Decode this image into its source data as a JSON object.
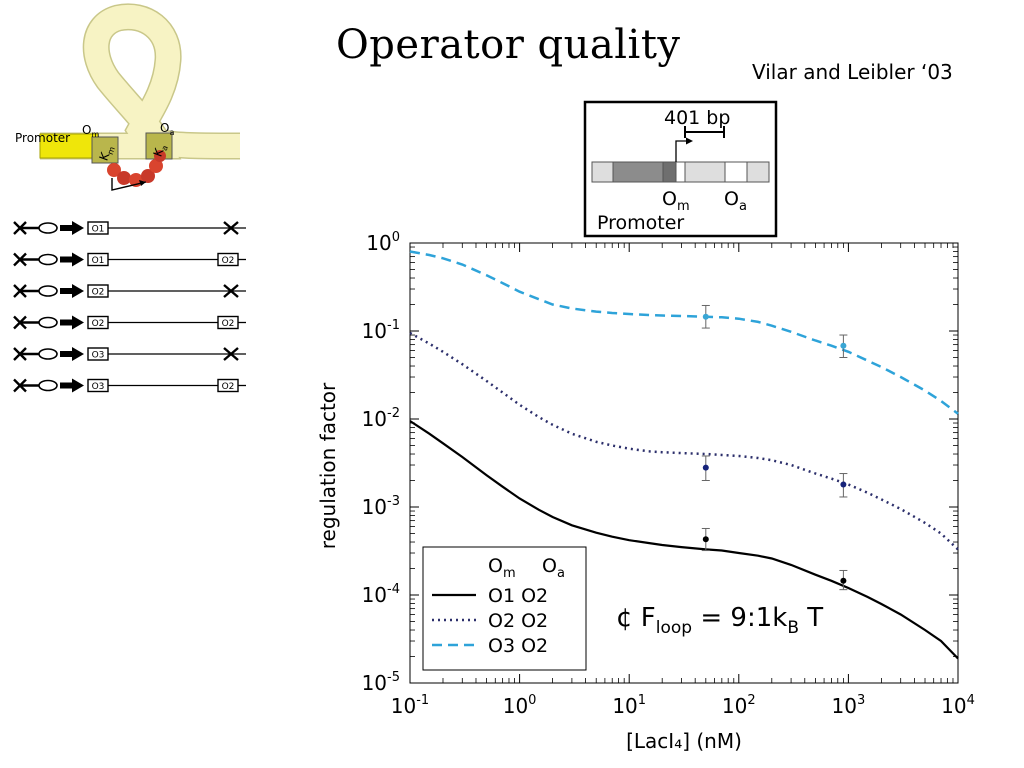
{
  "slide": {
    "title": "Operator quality",
    "citation": "Vilar and Leibler ‘03"
  },
  "loop_figure": {
    "promoter_label": "Promoter",
    "om_main": "O",
    "om_sub": "m",
    "oa_main": "O",
    "oa_sub": "a",
    "km_main": "K",
    "km_sub": "m",
    "ka_main": "K",
    "ka_sub": "a"
  },
  "constructs": [
    {
      "first": "O1",
      "second": ""
    },
    {
      "first": "O1",
      "second": "O2"
    },
    {
      "first": "O2",
      "second": ""
    },
    {
      "first": "O2",
      "second": "O2"
    },
    {
      "first": "O3",
      "second": ""
    },
    {
      "first": "O3",
      "second": "O2"
    }
  ],
  "inset": {
    "distance_label": "401 bp",
    "om_main": "O",
    "om_sub": "m",
    "oa_main": "O",
    "oa_sub": "a",
    "promoter_label": "Promoter"
  },
  "colors": {
    "o1o2": "#000000",
    "o2o2": "#2c2f6b",
    "o3o2": "#2ea3d9",
    "point_o2o2": "#16237a",
    "point_o3o2": "#3aa6d4"
  },
  "chart_data": {
    "type": "line",
    "xlabel": "[LacI₄] (nM)",
    "ylabel": "regulation factor",
    "x_scale": "log",
    "y_scale": "log",
    "xlim": [
      0.1,
      10000
    ],
    "ylim": [
      1e-05,
      1
    ],
    "x_ticks": [
      {
        "value": 0.1,
        "base": "10",
        "exp": "-1"
      },
      {
        "value": 1,
        "base": "10",
        "exp": "0"
      },
      {
        "value": 10,
        "base": "10",
        "exp": "1"
      },
      {
        "value": 100,
        "base": "10",
        "exp": "2"
      },
      {
        "value": 1000,
        "base": "10",
        "exp": "3"
      },
      {
        "value": 10000,
        "base": "10",
        "exp": "4"
      }
    ],
    "y_ticks": [
      {
        "value": 1,
        "base": "10",
        "exp": "0"
      },
      {
        "value": 0.1,
        "base": "10",
        "exp": "-1"
      },
      {
        "value": 0.01,
        "base": "10",
        "exp": "-2"
      },
      {
        "value": 0.001,
        "base": "10",
        "exp": "-3"
      },
      {
        "value": 0.0001,
        "base": "10",
        "exp": "-4"
      },
      {
        "value": 1e-05,
        "base": "10",
        "exp": "-5"
      }
    ],
    "legend_header": {
      "om_main": "O",
      "om_sub": "m",
      "oa_main": "O",
      "oa_sub": "a"
    },
    "legend_position": "bottom-left",
    "annotation": {
      "prefix": "¢ F",
      "sub": "loop",
      "mid": " =  9:1k",
      "sub2": "B",
      "suffix": " T"
    },
    "series": [
      {
        "name": "O1 O2",
        "style": "solid",
        "color_key": "o1o2",
        "x": [
          0.1,
          0.15,
          0.2,
          0.3,
          0.5,
          0.7,
          1,
          1.5,
          2,
          3,
          5,
          7,
          10,
          15,
          20,
          30,
          50,
          70,
          100,
          150,
          200,
          300,
          500,
          700,
          1000,
          1500,
          2000,
          3000,
          5000,
          7000,
          10000
        ],
        "y": [
          0.0095,
          0.0068,
          0.0053,
          0.0037,
          0.0023,
          0.0017,
          0.00125,
          0.00093,
          0.00077,
          0.00062,
          0.00051,
          0.00046,
          0.00042,
          0.00039,
          0.00037,
          0.00035,
          0.00033,
          0.00032,
          0.0003,
          0.00028,
          0.00026,
          0.00022,
          0.00017,
          0.000145,
          0.00012,
          9.5e-05,
          7.9e-05,
          6e-05,
          4e-05,
          3e-05,
          1.9e-05
        ]
      },
      {
        "name": "O2 O2",
        "style": "dotted",
        "color_key": "o2o2",
        "x": [
          0.1,
          0.15,
          0.2,
          0.3,
          0.5,
          0.7,
          1,
          1.5,
          2,
          3,
          5,
          7,
          10,
          15,
          20,
          30,
          50,
          70,
          100,
          150,
          200,
          300,
          500,
          700,
          1000,
          1500,
          2000,
          3000,
          5000,
          7000,
          10000
        ],
        "y": [
          0.095,
          0.072,
          0.058,
          0.042,
          0.027,
          0.02,
          0.0145,
          0.0105,
          0.0086,
          0.0068,
          0.0055,
          0.005,
          0.0046,
          0.0043,
          0.0042,
          0.0041,
          0.004,
          0.0039,
          0.0038,
          0.0036,
          0.0034,
          0.003,
          0.0024,
          0.0021,
          0.0018,
          0.00145,
          0.00122,
          0.00095,
          0.00066,
          0.0005,
          0.00033
        ]
      },
      {
        "name": "O3 O2",
        "style": "dashed",
        "color_key": "o3o2",
        "x": [
          0.1,
          0.15,
          0.2,
          0.3,
          0.5,
          0.7,
          1,
          1.5,
          2,
          3,
          5,
          7,
          10,
          15,
          20,
          30,
          50,
          70,
          100,
          150,
          200,
          300,
          500,
          700,
          1000,
          1500,
          2000,
          3000,
          5000,
          7000,
          10000
        ],
        "y": [
          0.8,
          0.73,
          0.67,
          0.57,
          0.43,
          0.35,
          0.28,
          0.23,
          0.2,
          0.18,
          0.166,
          0.16,
          0.156,
          0.152,
          0.15,
          0.148,
          0.145,
          0.143,
          0.138,
          0.127,
          0.115,
          0.098,
          0.078,
          0.068,
          0.058,
          0.046,
          0.039,
          0.03,
          0.021,
          0.016,
          0.0115
        ]
      }
    ],
    "measurements": [
      {
        "series": "O1 O2",
        "color_key": "o1o2",
        "x": 50,
        "y": 0.00043,
        "ylow": 0.00032,
        "yhigh": 0.00057
      },
      {
        "series": "O1 O2",
        "color_key": "o1o2",
        "x": 900,
        "y": 0.000145,
        "ylow": 0.000115,
        "yhigh": 0.00019
      },
      {
        "series": "O2 O2",
        "color_key": "point_o2o2",
        "x": 50,
        "y": 0.0028,
        "ylow": 0.002,
        "yhigh": 0.0038
      },
      {
        "series": "O2 O2",
        "color_key": "point_o2o2",
        "x": 900,
        "y": 0.0018,
        "ylow": 0.0013,
        "yhigh": 0.0024
      },
      {
        "series": "O3 O2",
        "color_key": "point_o3o2",
        "x": 50,
        "y": 0.145,
        "ylow": 0.108,
        "yhigh": 0.195
      },
      {
        "series": "O3 O2",
        "color_key": "point_o3o2",
        "x": 900,
        "y": 0.068,
        "ylow": 0.05,
        "yhigh": 0.09
      }
    ]
  }
}
